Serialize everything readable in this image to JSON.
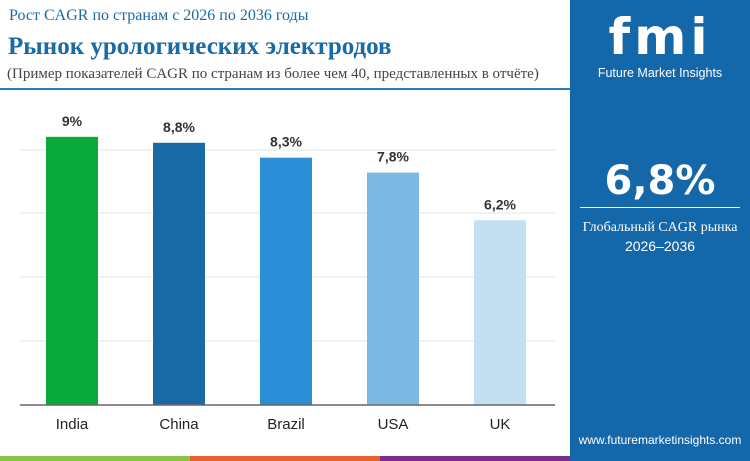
{
  "header": {
    "subtitle": "Рост CAGR по странам с 2026 по 2036 годы",
    "title": "Рынок урологических электродов",
    "note": "(Пример показателей CAGR по странам из более чем 40, представленных в отчёте)"
  },
  "sidebar": {
    "logo": "fmi",
    "brand": "Future Market Insights",
    "global_value": "6,8%",
    "global_label": "Глобальный CAGR рынка",
    "global_years": "2026–2036",
    "url": "www.futuremarketinsights.com"
  },
  "chart_data": {
    "type": "bar",
    "categories": [
      "India",
      "China",
      "Brazil",
      "USA",
      "UK"
    ],
    "values": [
      9,
      8.8,
      8.3,
      7.8,
      6.2
    ],
    "labels": [
      "9%",
      "8,8%",
      "8,3%",
      "7,8%",
      "6,2%"
    ],
    "colors": [
      "#0aaa3c",
      "#1a6aa8",
      "#2b8ed6",
      "#7cb8e2",
      "#c3e0f3"
    ],
    "grid": true,
    "ylim": [
      0,
      9.9
    ]
  },
  "colors": {
    "accent": "#1467a8",
    "strip": [
      "#8bc34a",
      "#e8602c",
      "#7b2d8e"
    ]
  }
}
